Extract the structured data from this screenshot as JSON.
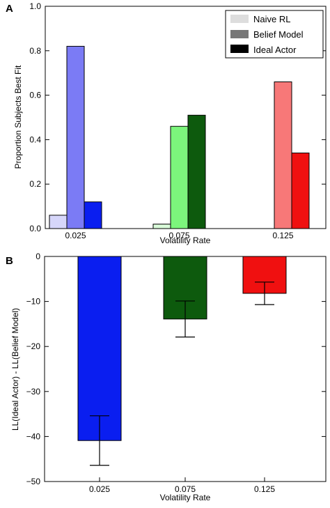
{
  "chart_data": [
    {
      "panel_label": "A",
      "type": "bar",
      "categories": [
        "0.025",
        "0.075",
        "0.125"
      ],
      "xlabel": "Volatility Rate",
      "ylabel": "Proportion Subjects Best Fit",
      "ylim": [
        0,
        1.0
      ],
      "yticks": [
        "0.0",
        "0.2",
        "0.4",
        "0.6",
        "0.8",
        "1.0"
      ],
      "grid": false,
      "legend_position": "top-right",
      "legend_colors": [
        "#dddddd",
        "#777777",
        "#000000"
      ],
      "series": [
        {
          "name": "Naive RL",
          "values": [
            0.06,
            0.02,
            0.0
          ],
          "colors": [
            "#d6d6fa",
            "#d9fbd9",
            "#ffdede"
          ]
        },
        {
          "name": "Belief Model",
          "values": [
            0.82,
            0.46,
            0.66
          ],
          "colors": [
            "#7b7bf5",
            "#7cf57c",
            "#f77878"
          ]
        },
        {
          "name": "Ideal Actor",
          "values": [
            0.12,
            0.51,
            0.34
          ],
          "colors": [
            "#0a1ef0",
            "#0d5a0d",
            "#f01010"
          ]
        }
      ]
    },
    {
      "panel_label": "B",
      "type": "bar",
      "categories": [
        "0.025",
        "0.075",
        "0.125"
      ],
      "xlabel": "Volatility Rate",
      "ylabel": "LL(Ideal Actor) - LL(Belief Model)",
      "ylim": [
        -50,
        0
      ],
      "yticks": [
        "0",
        "-10",
        "-20",
        "-30",
        "-40",
        "-50"
      ],
      "grid": false,
      "values": [
        -40.9,
        -13.9,
        -8.2
      ],
      "error": [
        5.5,
        4.0,
        2.5
      ],
      "colors": [
        "#0a1ef0",
        "#0d5a0d",
        "#f01010"
      ]
    }
  ]
}
